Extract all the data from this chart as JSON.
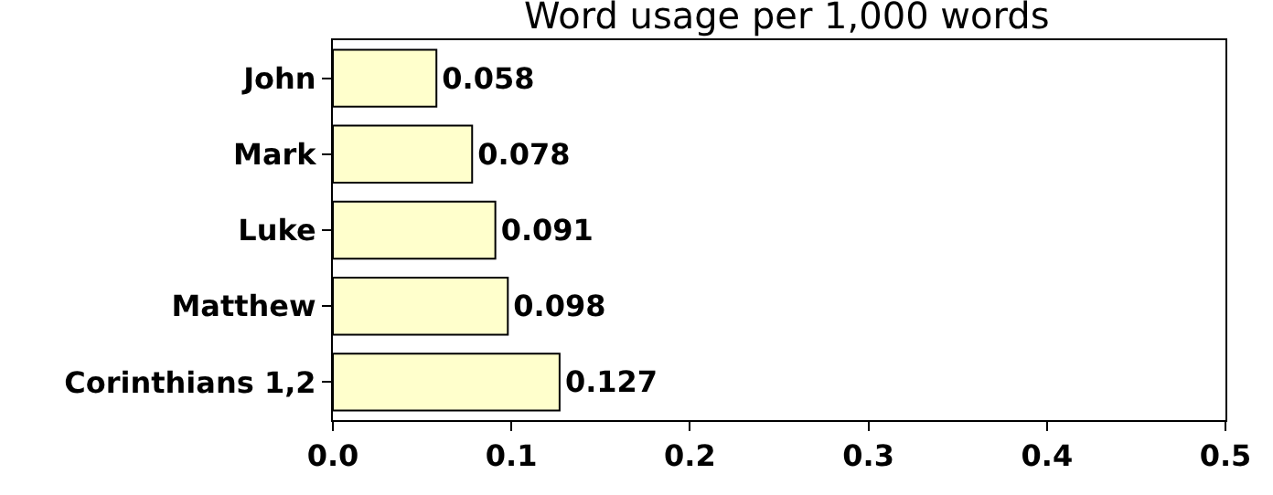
{
  "chart_data": {
    "type": "bar",
    "orientation": "horizontal",
    "title": "Word usage per 1,000 words",
    "categories": [
      "John",
      "Mark",
      "Luke",
      "Matthew",
      "Corinthians 1,2"
    ],
    "values": [
      0.058,
      0.078,
      0.091,
      0.098,
      0.127
    ],
    "color": "#ffffcc",
    "xlim": [
      0,
      0.5
    ],
    "xticks": [
      {
        "value": 0,
        "label": "0.0"
      },
      0.1,
      0.2,
      0.3,
      0.4,
      0.5
    ],
    "data_labels": true,
    "legend": false
  }
}
